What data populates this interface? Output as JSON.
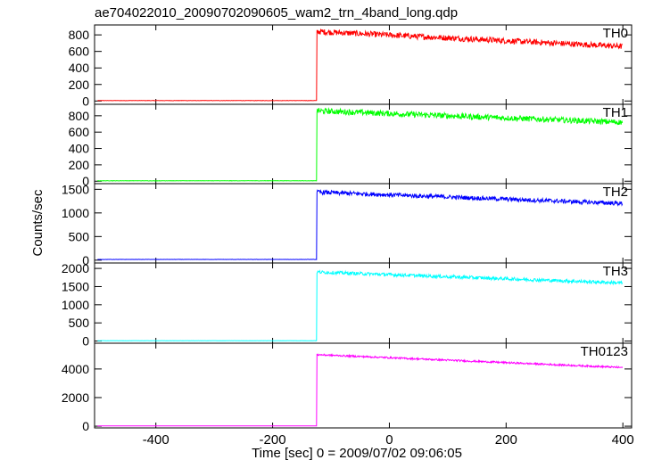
{
  "chart_data": {
    "type": "line",
    "title": "ae704022010_20090702090605_wam2_trn_4band_long.qdp",
    "xlabel": "Time [sec] 0 = 2009/07/02 09:06:05",
    "ylabel": "Counts/sec",
    "xlim": [
      -505,
      415
    ],
    "x_ticks": [
      -400,
      -200,
      0,
      200,
      400
    ],
    "grid": false,
    "step_time": -124,
    "series": [
      {
        "name": "TH0",
        "color": "#ff0000",
        "ylim": [
          -40,
          920
        ],
        "y_ticks": [
          0,
          200,
          400,
          600,
          800
        ],
        "pre_level": 5,
        "post_level_start": 840,
        "post_level_end": 660,
        "noise": 35
      },
      {
        "name": "TH1",
        "color": "#00ff00",
        "ylim": [
          -30,
          940
        ],
        "y_ticks": [
          0,
          200,
          400,
          600,
          800
        ],
        "pre_level": 5,
        "post_level_start": 860,
        "post_level_end": 720,
        "noise": 35
      },
      {
        "name": "TH2",
        "color": "#0000ff",
        "ylim": [
          -60,
          1620
        ],
        "y_ticks": [
          0,
          500,
          1000,
          1500
        ],
        "pre_level": 15,
        "post_level_start": 1440,
        "post_level_end": 1200,
        "noise": 45
      },
      {
        "name": "TH3",
        "color": "#00ffff",
        "ylim": [
          -60,
          2150
        ],
        "y_ticks": [
          0,
          500,
          1000,
          1500,
          2000
        ],
        "pre_level": 10,
        "post_level_start": 1900,
        "post_level_end": 1600,
        "noise": 45
      },
      {
        "name": "TH0123",
        "color": "#ff00ff",
        "ylim": [
          -120,
          5800
        ],
        "y_ticks": [
          0,
          2000,
          4000
        ],
        "pre_level": 20,
        "post_level_start": 5000,
        "post_level_end": 4100,
        "noise": 60
      }
    ]
  }
}
